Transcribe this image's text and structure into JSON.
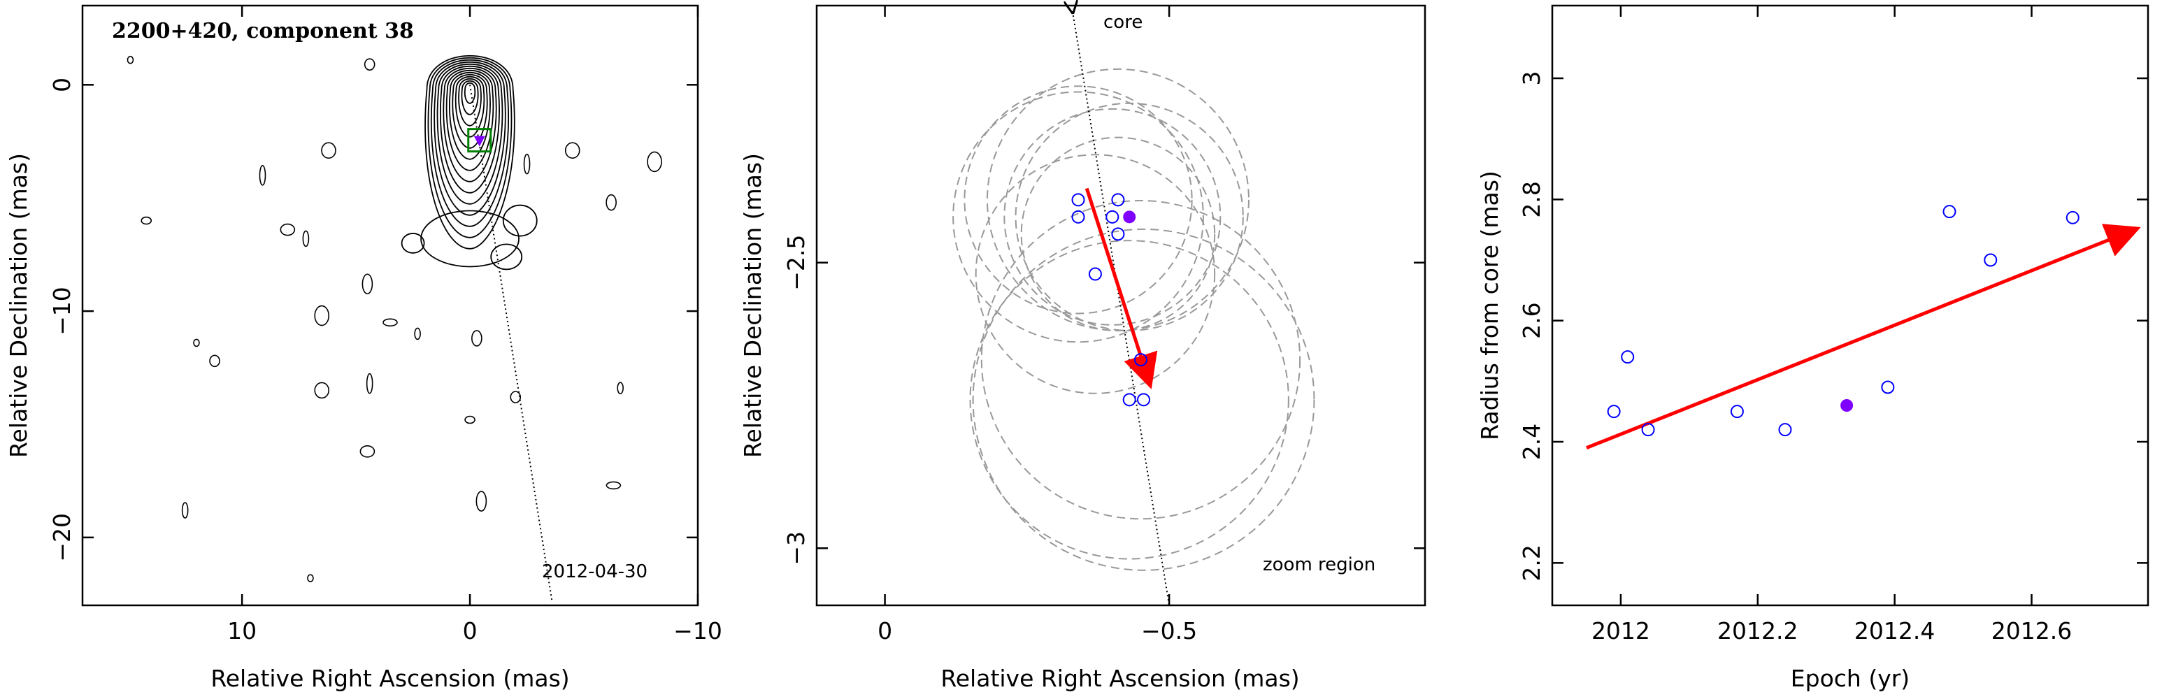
{
  "chart_data": [
    {
      "type": "contour",
      "panel_title": "2200+420, component 38",
      "xlabel": "Relative Right Ascension (mas)",
      "ylabel": "Relative Declination (mas)",
      "xlim": [
        17,
        -10
      ],
      "ylim": [
        -23,
        3.5
      ],
      "x_ticks": [
        10,
        0,
        -10
      ],
      "x_tick_labels": [
        "10",
        "0",
        "−10"
      ],
      "y_ticks": [
        0,
        -10,
        -20
      ],
      "y_tick_labels": [
        "0",
        "−10",
        "−20"
      ],
      "epoch_label": "2012-04-30",
      "component_position": {
        "x": -0.42,
        "y": -2.45
      },
      "jet_line": {
        "x": [
          0.0,
          -3.6
        ],
        "y": [
          0.0,
          -22.8
        ]
      },
      "colors": {
        "contour": "#000000",
        "component": "#7f00ff",
        "zoom_box": "#008000"
      }
    },
    {
      "type": "scatter",
      "xlabel": "Relative Right Ascension (mas)",
      "ylabel": "Relative Declination (mas)",
      "xlim": [
        0.12,
        -0.95
      ],
      "ylim": [
        -3.1,
        -2.05
      ],
      "x_ticks": [
        0,
        -0.5
      ],
      "x_tick_labels": [
        "0",
        "−0.5"
      ],
      "y_ticks": [
        -2.5,
        -3
      ],
      "y_tick_labels": [
        "−2.5",
        "−3"
      ],
      "core_label": "core",
      "region_label": "zoom region",
      "points_open": [
        {
          "x": -0.34,
          "y": -2.39
        },
        {
          "x": -0.34,
          "y": -2.42
        },
        {
          "x": -0.4,
          "y": -2.42
        },
        {
          "x": -0.41,
          "y": -2.39
        },
        {
          "x": -0.41,
          "y": -2.45
        },
        {
          "x": -0.37,
          "y": -2.52
        },
        {
          "x": -0.45,
          "y": -2.67
        },
        {
          "x": -0.43,
          "y": -2.74
        },
        {
          "x": -0.455,
          "y": -2.74
        }
      ],
      "points_filled": [
        {
          "x": -0.43,
          "y": -2.42
        }
      ],
      "circles": [
        {
          "x": -0.34,
          "y": -2.39,
          "r": 0.2
        },
        {
          "x": -0.34,
          "y": -2.42,
          "r": 0.22
        },
        {
          "x": -0.4,
          "y": -2.42,
          "r": 0.19
        },
        {
          "x": -0.41,
          "y": -2.39,
          "r": 0.23
        },
        {
          "x": -0.41,
          "y": -2.45,
          "r": 0.17
        },
        {
          "x": -0.37,
          "y": -2.52,
          "r": 0.21
        },
        {
          "x": -0.45,
          "y": -2.67,
          "r": 0.28
        },
        {
          "x": -0.43,
          "y": -2.74,
          "r": 0.28
        },
        {
          "x": -0.455,
          "y": -2.74,
          "r": 0.3
        },
        {
          "x": -0.43,
          "y": -2.42,
          "r": 0.2
        }
      ],
      "arrow": {
        "x": [
          -0.355,
          -0.465
        ],
        "y": [
          -2.37,
          -2.71
        ]
      },
      "core_line": {
        "x": [
          -0.33,
          -0.5
        ],
        "y": [
          -2.06,
          -3.1
        ]
      },
      "colors": {
        "open_points": "#0000ff",
        "filled_point": "#7f00ff",
        "arrow": "#ff0000",
        "circles": "#999999"
      }
    },
    {
      "type": "scatter",
      "xlabel": "Epoch (yr)",
      "ylabel": "Radius from core (mas)",
      "xlim": [
        2011.9,
        2012.77
      ],
      "ylim": [
        2.13,
        3.12
      ],
      "x_ticks": [
        2012,
        2012.2,
        2012.4,
        2012.6
      ],
      "x_tick_labels": [
        "2012",
        "2012.2",
        "2012.4",
        "2012.6"
      ],
      "y_ticks": [
        2.2,
        2.4,
        2.6,
        2.8,
        3
      ],
      "y_tick_labels": [
        "2.2",
        "2.4",
        "2.6",
        "2.8",
        "3"
      ],
      "points_open": [
        {
          "x": 2011.99,
          "y": 2.45
        },
        {
          "x": 2012.01,
          "y": 2.54
        },
        {
          "x": 2012.04,
          "y": 2.42
        },
        {
          "x": 2012.17,
          "y": 2.45
        },
        {
          "x": 2012.24,
          "y": 2.42
        },
        {
          "x": 2012.39,
          "y": 2.49
        },
        {
          "x": 2012.48,
          "y": 2.78
        },
        {
          "x": 2012.54,
          "y": 2.7
        },
        {
          "x": 2012.66,
          "y": 2.77
        }
      ],
      "points_filled": [
        {
          "x": 2012.33,
          "y": 2.46
        }
      ],
      "arrow": {
        "x": [
          2011.95,
          2012.75
        ],
        "y": [
          2.39,
          2.75
        ]
      },
      "colors": {
        "open_points": "#0000ff",
        "filled_point": "#7f00ff",
        "arrow": "#ff0000"
      }
    }
  ]
}
